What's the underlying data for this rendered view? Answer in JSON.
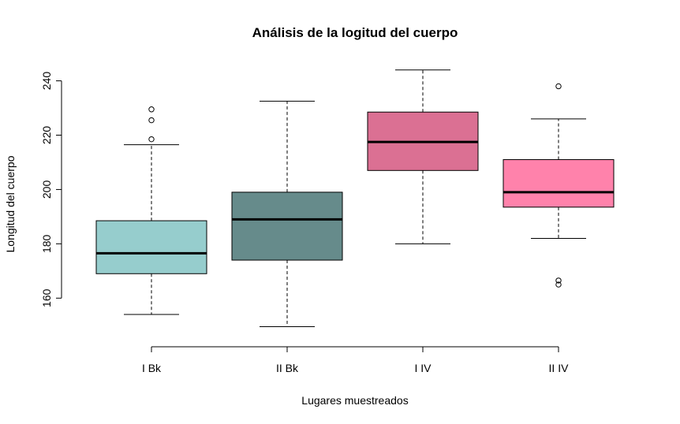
{
  "chart_data": {
    "type": "boxplot",
    "title": "Análisis de la logitud del cuerpo",
    "xlabel": "Lugares muestreados",
    "ylabel": "Longitud del cuerpo",
    "ylim": [
      145,
      248
    ],
    "yticks": [
      160,
      180,
      200,
      220,
      240
    ],
    "grid": false,
    "categories": [
      "I Bk",
      "II Bk",
      "I IV",
      "II IV"
    ],
    "boxes": [
      {
        "category": "I Bk",
        "min": 154,
        "q1": 169,
        "median": 176.5,
        "q3": 188.5,
        "max": 216.5,
        "outliers": [
          218.5,
          225.5,
          229.5
        ],
        "color": "#96CDCD"
      },
      {
        "category": "II Bk",
        "min": 149.5,
        "q1": 174,
        "median": 189,
        "q3": 199,
        "max": 232.5,
        "outliers": [],
        "color": "#668B8B"
      },
      {
        "category": "I IV",
        "min": 180,
        "q1": 207,
        "median": 217.5,
        "q3": 228.5,
        "max": 244,
        "outliers": [],
        "color": "#DB7093"
      },
      {
        "category": "II IV",
        "min": 182,
        "q1": 193.5,
        "median": 199,
        "q3": 211,
        "max": 226,
        "outliers": [
          238,
          166.5,
          165
        ],
        "color": "#FF82AB"
      }
    ]
  }
}
